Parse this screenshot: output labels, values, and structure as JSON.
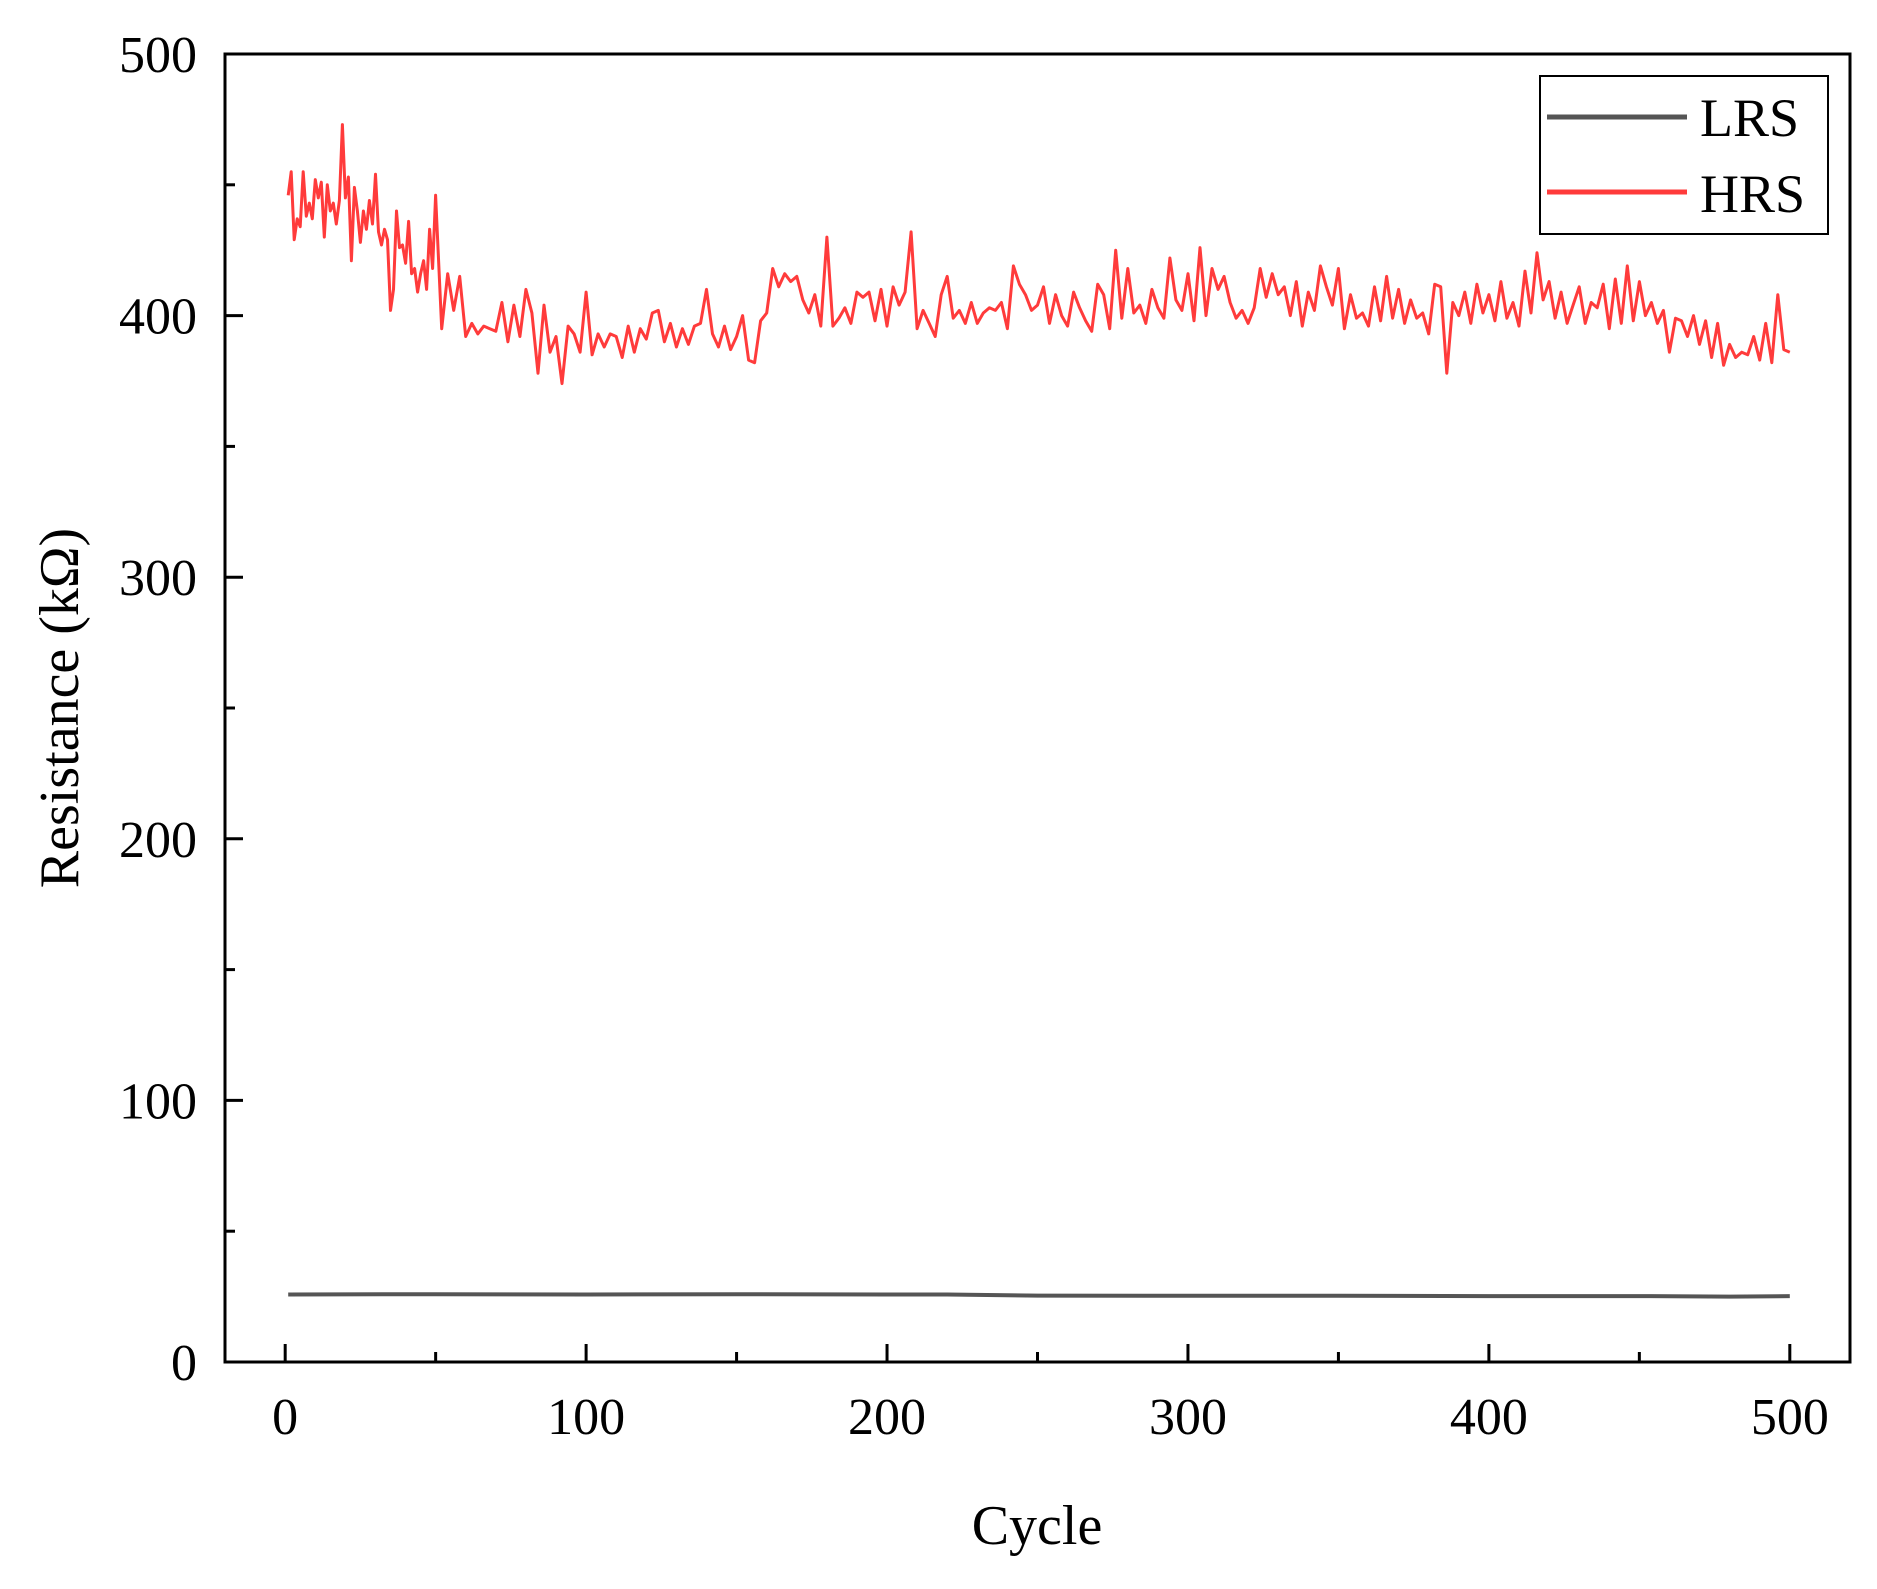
{
  "chart_data": {
    "type": "line",
    "title": "",
    "xlabel": "Cycle",
    "ylabel": "Resistance (kΩ)",
    "xlim": [
      -20,
      520
    ],
    "ylim": [
      0,
      500
    ],
    "xticks": [
      0,
      100,
      200,
      300,
      400,
      500
    ],
    "yticks": [
      0,
      100,
      200,
      300,
      400,
      500
    ],
    "grid": false,
    "legend": {
      "position": "top-right",
      "entries": [
        "LRS",
        "HRS"
      ]
    },
    "series": [
      {
        "name": "LRS",
        "color": "#555555",
        "x": [
          1,
          50,
          100,
          150,
          200,
          220,
          250,
          300,
          350,
          400,
          450,
          480,
          500
        ],
        "values": [
          25.8,
          25.9,
          25.8,
          25.9,
          25.8,
          25.8,
          25.4,
          25.3,
          25.3,
          25.2,
          25.2,
          25.0,
          25.2
        ]
      },
      {
        "name": "HRS",
        "color": "#ff3b3b",
        "x": [
          1,
          2,
          3,
          4,
          5,
          6,
          7,
          8,
          9,
          10,
          11,
          12,
          13,
          14,
          15,
          16,
          17,
          18,
          19,
          20,
          21,
          22,
          23,
          24,
          25,
          26,
          27,
          28,
          29,
          30,
          31,
          32,
          33,
          34,
          35,
          36,
          37,
          38,
          39,
          40,
          41,
          42,
          43,
          44,
          45,
          46,
          47,
          48,
          49,
          50,
          52,
          54,
          56,
          58,
          60,
          62,
          64,
          66,
          68,
          70,
          72,
          74,
          76,
          78,
          80,
          82,
          84,
          86,
          88,
          90,
          92,
          94,
          96,
          98,
          100,
          102,
          104,
          106,
          108,
          110,
          112,
          114,
          116,
          118,
          120,
          122,
          124,
          126,
          128,
          130,
          132,
          134,
          136,
          138,
          140,
          142,
          144,
          146,
          148,
          150,
          152,
          154,
          156,
          158,
          160,
          162,
          164,
          166,
          168,
          170,
          172,
          174,
          176,
          178,
          180,
          182,
          184,
          186,
          188,
          190,
          192,
          194,
          196,
          198,
          200,
          202,
          204,
          206,
          208,
          210,
          212,
          214,
          216,
          218,
          220,
          222,
          224,
          226,
          228,
          230,
          232,
          234,
          236,
          238,
          240,
          242,
          244,
          246,
          248,
          250,
          252,
          254,
          256,
          258,
          260,
          262,
          264,
          266,
          268,
          270,
          272,
          274,
          276,
          278,
          280,
          282,
          284,
          286,
          288,
          290,
          292,
          294,
          296,
          298,
          300,
          302,
          304,
          306,
          308,
          310,
          312,
          314,
          316,
          318,
          320,
          322,
          324,
          326,
          328,
          330,
          332,
          334,
          336,
          338,
          340,
          342,
          344,
          346,
          348,
          350,
          352,
          354,
          356,
          358,
          360,
          362,
          364,
          366,
          368,
          370,
          372,
          374,
          376,
          378,
          380,
          382,
          384,
          386,
          388,
          390,
          392,
          394,
          396,
          398,
          400,
          402,
          404,
          406,
          408,
          410,
          412,
          414,
          416,
          418,
          420,
          422,
          424,
          426,
          428,
          430,
          432,
          434,
          436,
          438,
          440,
          442,
          444,
          446,
          448,
          450,
          452,
          454,
          456,
          458,
          460,
          462,
          464,
          466,
          468,
          470,
          472,
          474,
          476,
          478,
          480,
          482,
          484,
          486,
          488,
          490,
          492,
          494,
          496,
          498,
          500
        ],
        "values": [
          446,
          455,
          429,
          437,
          434,
          455,
          438,
          443,
          437,
          452,
          445,
          451,
          430,
          450,
          440,
          443,
          435,
          444,
          473,
          445,
          453,
          421,
          449,
          440,
          428,
          440,
          433,
          444,
          435,
          454,
          432,
          427,
          433,
          429,
          402,
          410,
          440,
          426,
          427,
          420,
          436,
          416,
          418,
          409,
          416,
          421,
          410,
          433,
          418,
          446,
          395,
          416,
          402,
          415,
          392,
          397,
          393,
          396,
          395,
          394,
          405,
          390,
          404,
          392,
          410,
          401,
          378,
          404,
          386,
          392,
          374,
          396,
          393,
          386,
          409,
          385,
          393,
          388,
          393,
          392,
          384,
          396,
          386,
          395,
          391,
          401,
          402,
          390,
          397,
          388,
          395,
          389,
          396,
          397,
          410,
          393,
          388,
          396,
          387,
          392,
          400,
          383,
          382,
          398,
          401,
          418,
          411,
          416,
          413,
          415,
          406,
          401,
          408,
          396,
          430,
          396,
          399,
          403,
          397,
          409,
          407,
          409,
          398,
          410,
          396,
          411,
          404,
          409,
          432,
          395,
          402,
          397,
          392,
          408,
          415,
          399,
          402,
          397,
          405,
          397,
          401,
          403,
          402,
          405,
          395,
          419,
          412,
          408,
          402,
          404,
          411,
          397,
          408,
          400,
          396,
          409,
          403,
          398,
          394,
          412,
          408,
          395,
          425,
          399,
          418,
          401,
          404,
          397,
          410,
          403,
          399,
          422,
          406,
          402,
          416,
          398,
          426,
          400,
          418,
          410,
          415,
          405,
          399,
          402,
          397,
          403,
          418,
          407,
          416,
          408,
          411,
          400,
          413,
          396,
          409,
          402,
          419,
          411,
          404,
          418,
          395,
          408,
          399,
          401,
          396,
          411,
          398,
          415,
          399,
          410,
          397,
          406,
          399,
          401,
          393,
          412,
          411,
          378,
          405,
          400,
          409,
          397,
          412,
          401,
          408,
          398,
          413,
          399,
          405,
          396,
          417,
          401,
          424,
          406,
          413,
          399,
          409,
          397,
          404,
          411,
          397,
          405,
          403,
          412,
          395,
          414,
          397,
          419,
          398,
          413,
          400,
          405,
          397,
          402,
          386,
          399,
          398,
          392,
          400,
          389,
          398,
          384,
          397,
          381,
          389,
          384,
          386,
          385,
          392,
          383,
          397,
          382,
          408,
          387,
          386
        ]
      }
    ]
  }
}
